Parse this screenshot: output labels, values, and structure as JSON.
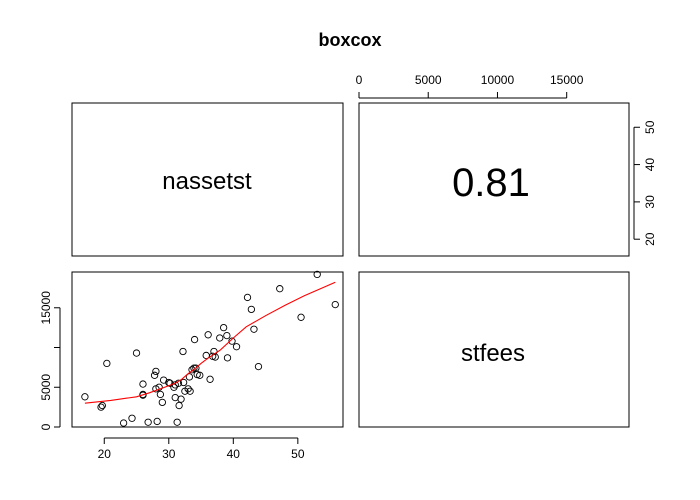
{
  "title": "boxcox",
  "variables": [
    "nassetst",
    "stfees"
  ],
  "correlation": "0.81",
  "colors": {
    "smooth_line": "#ff0000",
    "points": "#000000",
    "frame": "#000000"
  },
  "chart_data": {
    "type": "scatter",
    "title": "boxcox",
    "xlabel": "nassetst",
    "ylabel": "stfees",
    "xlim": [
      15,
      57
    ],
    "ylim": [
      0,
      19500
    ],
    "x_ticks": [
      20,
      30,
      40,
      50
    ],
    "y_ticks": [
      0,
      5000,
      10000,
      15000
    ],
    "y_ticks_labeled": [
      0,
      5000,
      15000
    ],
    "top_axis_ticks": [
      0,
      5000,
      10000,
      15000
    ],
    "right_axis_ticks": [
      20,
      30,
      40,
      50
    ],
    "right_axis_range": [
      15.5,
      56.5
    ],
    "correlation": 0.81,
    "points": [
      [
        17,
        3800
      ],
      [
        19.5,
        2500
      ],
      [
        19.7,
        2700
      ],
      [
        20.4,
        8000
      ],
      [
        23,
        500
      ],
      [
        24.3,
        1100
      ],
      [
        25,
        9300
      ],
      [
        26,
        4000
      ],
      [
        26,
        4100
      ],
      [
        26,
        5400
      ],
      [
        26.8,
        600
      ],
      [
        27.8,
        6500
      ],
      [
        28,
        7000
      ],
      [
        28,
        4800
      ],
      [
        28.2,
        700
      ],
      [
        28.5,
        5000
      ],
      [
        28.7,
        4100
      ],
      [
        29,
        3100
      ],
      [
        29.2,
        5900
      ],
      [
        30,
        5600
      ],
      [
        30.2,
        5500
      ],
      [
        30.8,
        5000
      ],
      [
        31,
        3700
      ],
      [
        31,
        5300
      ],
      [
        31.3,
        600
      ],
      [
        31.5,
        5500
      ],
      [
        31.6,
        2700
      ],
      [
        31.9,
        3500
      ],
      [
        32.2,
        9500
      ],
      [
        32.3,
        5600
      ],
      [
        32.5,
        4500
      ],
      [
        33,
        4800
      ],
      [
        33.2,
        6300
      ],
      [
        33.3,
        4500
      ],
      [
        33.6,
        7200
      ],
      [
        33.9,
        7400
      ],
      [
        34,
        11000
      ],
      [
        34.2,
        7400
      ],
      [
        34.4,
        6600
      ],
      [
        34.8,
        6500
      ],
      [
        35.8,
        9000
      ],
      [
        36.1,
        11600
      ],
      [
        36.4,
        6000
      ],
      [
        36.8,
        8900
      ],
      [
        37,
        9500
      ],
      [
        37.2,
        8800
      ],
      [
        37.9,
        11200
      ],
      [
        38.5,
        12500
      ],
      [
        39,
        11500
      ],
      [
        39.1,
        8700
      ],
      [
        39.8,
        10800
      ],
      [
        40.5,
        10100
      ],
      [
        42.2,
        16300
      ],
      [
        42.8,
        14800
      ],
      [
        43.2,
        12300
      ],
      [
        43.9,
        7600
      ],
      [
        47.2,
        17400
      ],
      [
        50.5,
        13800
      ],
      [
        53,
        19200
      ],
      [
        55.8,
        15400
      ]
    ],
    "smooth_line": [
      [
        17,
        3000
      ],
      [
        21,
        3350
      ],
      [
        25,
        3800
      ],
      [
        27,
        4300
      ],
      [
        29,
        4900
      ],
      [
        31,
        5500
      ],
      [
        32,
        6000
      ],
      [
        33,
        6700
      ],
      [
        34,
        7300
      ],
      [
        35,
        8000
      ],
      [
        36,
        8600
      ],
      [
        38,
        9700
      ],
      [
        40,
        11200
      ],
      [
        42,
        12600
      ],
      [
        45,
        14000
      ],
      [
        48,
        15300
      ],
      [
        51,
        16500
      ],
      [
        53.5,
        17400
      ],
      [
        55.8,
        18200
      ]
    ]
  }
}
